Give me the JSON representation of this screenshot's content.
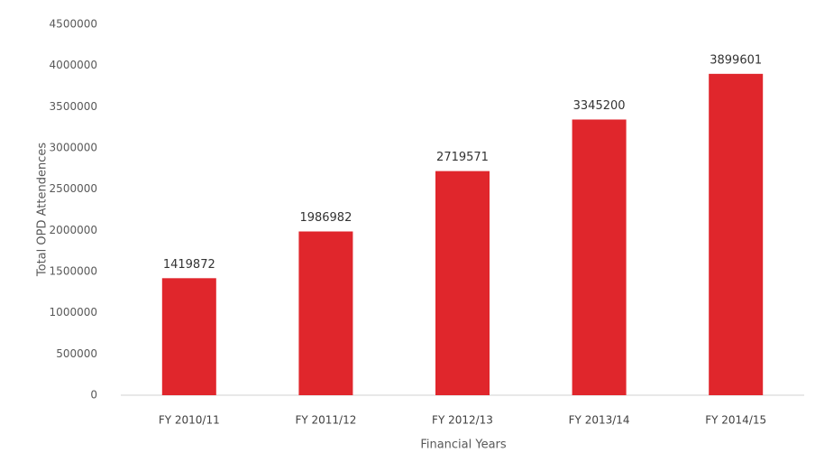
{
  "chart_data": {
    "type": "bar",
    "x_label": "Financial Years",
    "y_label": "Total OPD Attendences",
    "categories": [
      "FY 2010/11",
      "FY 2011/12",
      "FY 2012/13",
      "FY 2013/14",
      "FY 2014/15"
    ],
    "values": [
      1419872,
      1986982,
      2719571,
      3345200,
      3899601
    ],
    "color": "#e0262c",
    "ylim": [
      0,
      4500000
    ],
    "yticks": [
      0,
      500000,
      1000000,
      1500000,
      2000000,
      2500000,
      3000000,
      3500000,
      4000000,
      4500000
    ],
    "grid": false
  }
}
